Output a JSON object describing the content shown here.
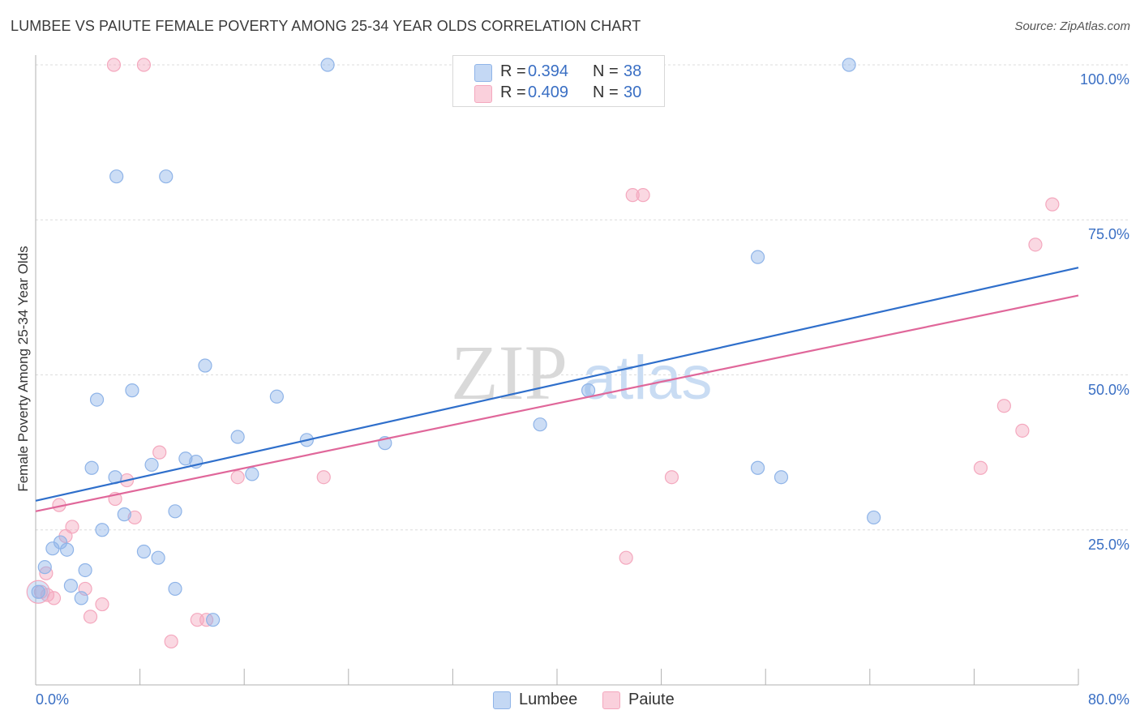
{
  "title": "LUMBEE VS PAIUTE FEMALE POVERTY AMONG 25-34 YEAR OLDS CORRELATION CHART",
  "source": "Source: ZipAtlas.com",
  "watermark": {
    "zip": "ZIP",
    "atlas": "atlas"
  },
  "legend": {
    "rows": [
      {
        "r_label": "R =",
        "r_value": "0.394",
        "n_label": "N =",
        "n_value": "38"
      },
      {
        "r_label": "R =",
        "r_value": "0.409",
        "n_label": "N =",
        "n_value": "30"
      }
    ]
  },
  "bottom_legend": {
    "lumbee": "Lumbee",
    "paiute": "Paiute"
  },
  "chart_data": {
    "type": "scatter",
    "title": "LUMBEE VS PAIUTE FEMALE POVERTY AMONG 25-34 YEAR OLDS CORRELATION CHART",
    "xlabel": "",
    "ylabel": "Female Poverty Among 25-34 Year Olds",
    "xlim": [
      0,
      80
    ],
    "ylim": [
      0,
      102
    ],
    "x_tick_labels": [
      "0.0%",
      "80.0%"
    ],
    "y_tick_labels": [
      "25.0%",
      "50.0%",
      "75.0%",
      "100.0%"
    ],
    "y_ticks": [
      25,
      50,
      75,
      100
    ],
    "grid": true,
    "colors": {
      "lumbee": "#8fb4e8",
      "lumbee_line": "#2f6fcb",
      "paiute": "#f4a8be",
      "paiute_line": "#e0679a",
      "tick_label": "#3a6fc4"
    },
    "series": [
      {
        "name": "Lumbee",
        "points": [
          [
            0.2,
            15.0
          ],
          [
            0.7,
            19.0
          ],
          [
            1.3,
            22.0
          ],
          [
            1.9,
            23.0
          ],
          [
            2.4,
            21.8
          ],
          [
            2.7,
            16.0
          ],
          [
            3.5,
            14.0
          ],
          [
            3.8,
            18.5
          ],
          [
            4.3,
            35.0
          ],
          [
            4.7,
            46.0
          ],
          [
            5.1,
            25.0
          ],
          [
            6.1,
            33.5
          ],
          [
            6.2,
            82.0
          ],
          [
            6.8,
            27.5
          ],
          [
            7.4,
            47.5
          ],
          [
            8.3,
            21.5
          ],
          [
            8.9,
            35.5
          ],
          [
            9.4,
            20.5
          ],
          [
            10.0,
            82.0
          ],
          [
            10.7,
            28.0
          ],
          [
            10.7,
            15.5
          ],
          [
            11.5,
            36.5
          ],
          [
            12.3,
            36.0
          ],
          [
            13.0,
            51.5
          ],
          [
            13.6,
            10.5
          ],
          [
            15.5,
            40.0
          ],
          [
            16.6,
            34.0
          ],
          [
            18.5,
            46.5
          ],
          [
            20.8,
            39.5
          ],
          [
            22.4,
            100.0
          ],
          [
            26.8,
            39.0
          ],
          [
            38.7,
            42.0
          ],
          [
            42.4,
            47.5
          ],
          [
            55.4,
            69.0
          ],
          [
            55.4,
            35.0
          ],
          [
            57.2,
            33.5
          ],
          [
            62.4,
            100.0
          ],
          [
            64.3,
            27.0
          ]
        ],
        "trend": {
          "x": [
            0,
            80
          ],
          "y": [
            29.7,
            67.3
          ]
        }
      },
      {
        "name": "Paiute",
        "points": [
          [
            0.4,
            15.0
          ],
          [
            0.8,
            18.0
          ],
          [
            1.4,
            14.0
          ],
          [
            1.8,
            29.0
          ],
          [
            2.3,
            24.0
          ],
          [
            2.8,
            25.5
          ],
          [
            3.8,
            15.5
          ],
          [
            4.2,
            11.0
          ],
          [
            5.1,
            13.0
          ],
          [
            6.0,
            100.0
          ],
          [
            6.1,
            30.0
          ],
          [
            7.0,
            33.0
          ],
          [
            7.6,
            27.0
          ],
          [
            8.3,
            100.0
          ],
          [
            9.5,
            37.5
          ],
          [
            10.4,
            7.0
          ],
          [
            12.4,
            10.5
          ],
          [
            13.1,
            10.5
          ],
          [
            15.5,
            33.5
          ],
          [
            22.1,
            33.5
          ],
          [
            45.3,
            20.5
          ],
          [
            45.8,
            79.0
          ],
          [
            46.6,
            79.0
          ],
          [
            48.8,
            33.5
          ],
          [
            72.5,
            35.0
          ],
          [
            74.3,
            45.0
          ],
          [
            75.7,
            41.0
          ],
          [
            76.7,
            71.0
          ],
          [
            78.0,
            77.5
          ],
          [
            0.9,
            14.5
          ]
        ],
        "trend": {
          "x": [
            0,
            80
          ],
          "y": [
            28.0,
            62.8
          ]
        }
      }
    ]
  }
}
